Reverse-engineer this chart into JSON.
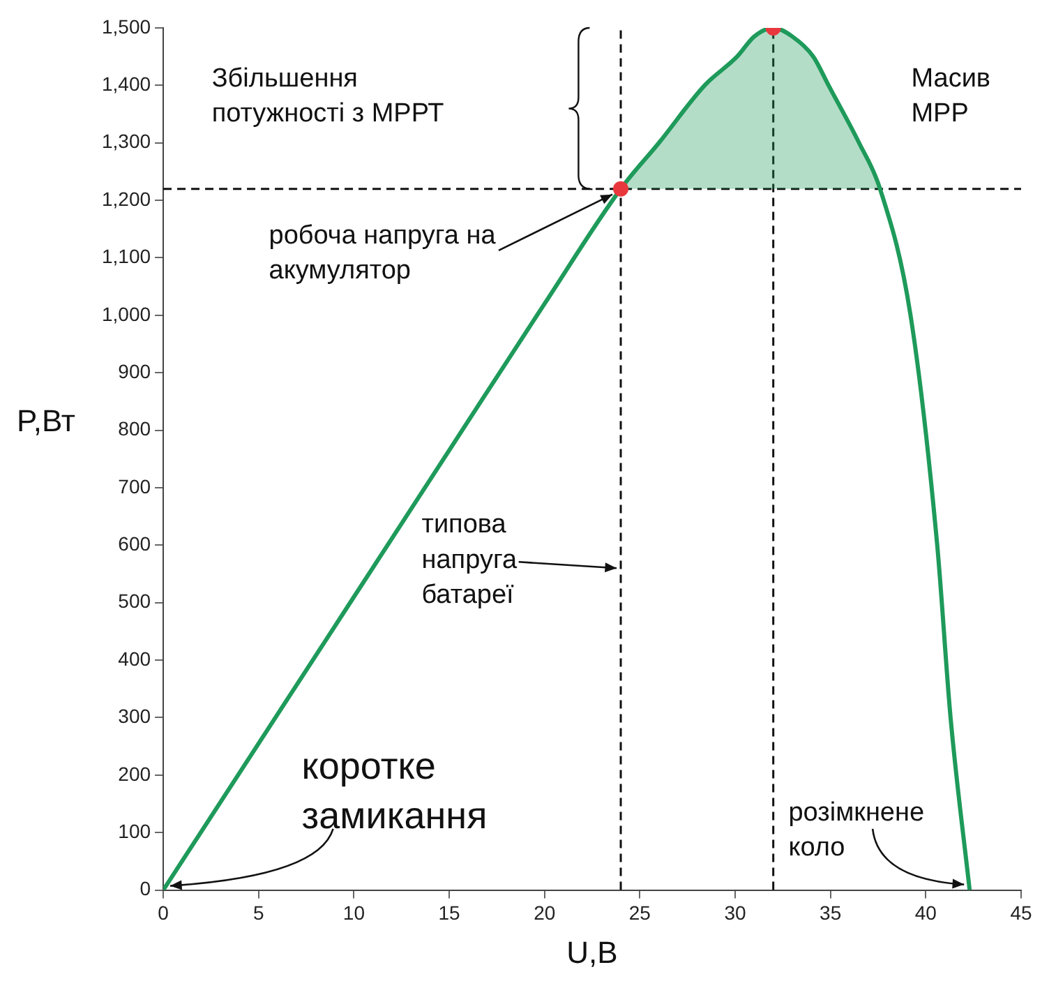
{
  "chart_data": {
    "type": "line",
    "xlabel": "U,B",
    "ylabel": "P,Вт",
    "xlim": [
      0,
      45
    ],
    "xticks": [
      0,
      5,
      10,
      15,
      20,
      25,
      30,
      35,
      40,
      45
    ],
    "ylim": [
      0,
      1500
    ],
    "yticks": [
      0,
      100,
      200,
      300,
      400,
      500,
      600,
      700,
      800,
      900,
      {
        "value": 1000,
        "label": "1,000"
      },
      {
        "value": 1100,
        "label": "1,100"
      },
      {
        "value": 1200,
        "label": "1,200"
      },
      {
        "value": 1300,
        "label": "1,300"
      },
      {
        "value": 1400,
        "label": "1,400"
      },
      {
        "value": 1500,
        "label": "1,500"
      }
    ],
    "grid": false,
    "legend": false,
    "marker": "none",
    "line_style": "solid",
    "series": [
      {
        "color": "#1e9a5a",
        "x": [
          0,
          5,
          10,
          15,
          20,
          24,
          26,
          28.4,
          30.1,
          31,
          32,
          33,
          34.1,
          34.9,
          36.5,
          37.6,
          39.2,
          40.6,
          41.3,
          42.3
        ],
        "values": [
          0,
          255,
          510,
          765,
          1020,
          1220,
          1300,
          1400,
          1450,
          1485,
          1500,
          1485,
          1450,
          1400,
          1300,
          1220,
          1000,
          600,
          300,
          0
        ],
        "lower": [
          null,
          null,
          null,
          null,
          null,
          1220,
          1220,
          1220,
          1220,
          1220,
          1220,
          1220,
          1220,
          1220,
          1220,
          1220,
          null,
          null,
          null,
          null
        ],
        "upper": [
          null,
          null,
          null,
          null,
          null,
          1220,
          1300,
          1400,
          1450,
          1485,
          1500,
          1485,
          1450,
          1400,
          1300,
          1220,
          null,
          null,
          null,
          null
        ]
      },
      {
        "type": "scatter",
        "color": "#e8383d",
        "marker": "circle",
        "x": [
          24,
          32
        ],
        "values": [
          1220,
          1500
        ]
      }
    ],
    "ref_lines": [
      {
        "axis": "y",
        "value": 1220,
        "line_style": "dashed"
      },
      {
        "axis": "x",
        "value": 24,
        "line_style": "dashed"
      },
      {
        "axis": "x",
        "value": 32,
        "line_style": "dashed"
      }
    ],
    "annotations": [
      "Збільшення потужності з МРРТ",
      "Масив МРР",
      {
        "text": "робоча напруга на акумулятор",
        "x": 24,
        "y": 1220
      },
      {
        "text": "типова напруга батареї",
        "x": 24,
        "y": 560
      },
      {
        "text": "коротке замикання",
        "x": 0,
        "y": 0
      },
      {
        "text": "розімкнене коло",
        "x": 42.3,
        "y": 0
      }
    ]
  }
}
